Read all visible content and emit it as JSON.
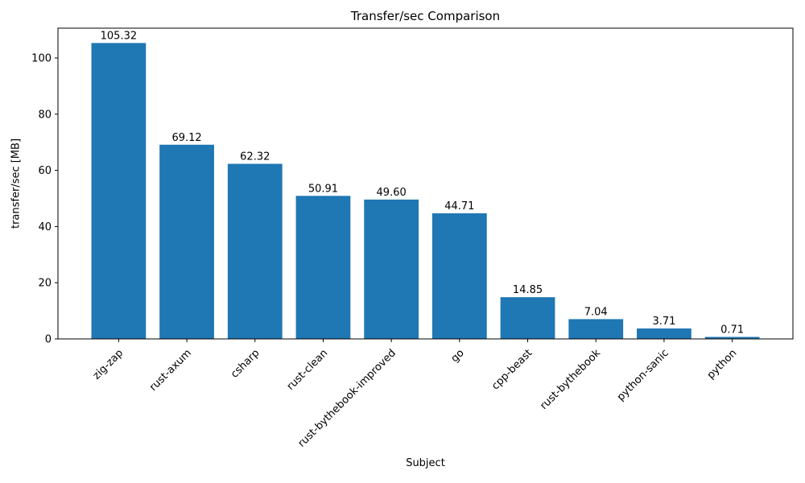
{
  "chart_data": {
    "type": "bar",
    "title": "Transfer/sec Comparison",
    "xlabel": "Subject",
    "ylabel": "transfer/sec [MB]",
    "categories": [
      "zig-zap",
      "rust-axum",
      "csharp",
      "rust-clean",
      "rust-bythebook-improved",
      "go",
      "cpp-beast",
      "rust-bythebook",
      "python-sanic",
      "python"
    ],
    "values": [
      105.32,
      69.12,
      62.32,
      50.91,
      49.6,
      44.71,
      14.85,
      7.04,
      3.71,
      0.71
    ],
    "value_labels": [
      "105.32",
      "69.12",
      "62.32",
      "50.91",
      "49.60",
      "44.71",
      "14.85",
      "7.04",
      "3.71",
      "0.71"
    ],
    "ylim": [
      0,
      110.6
    ],
    "yticks": [
      0,
      20,
      40,
      60,
      80,
      100
    ],
    "ytick_labels": [
      "0",
      "20",
      "40",
      "60",
      "80",
      "100"
    ],
    "bar_color": "#1f77b4",
    "grid": false,
    "legend_position": "none",
    "x_tick_label_rotation": 45
  }
}
